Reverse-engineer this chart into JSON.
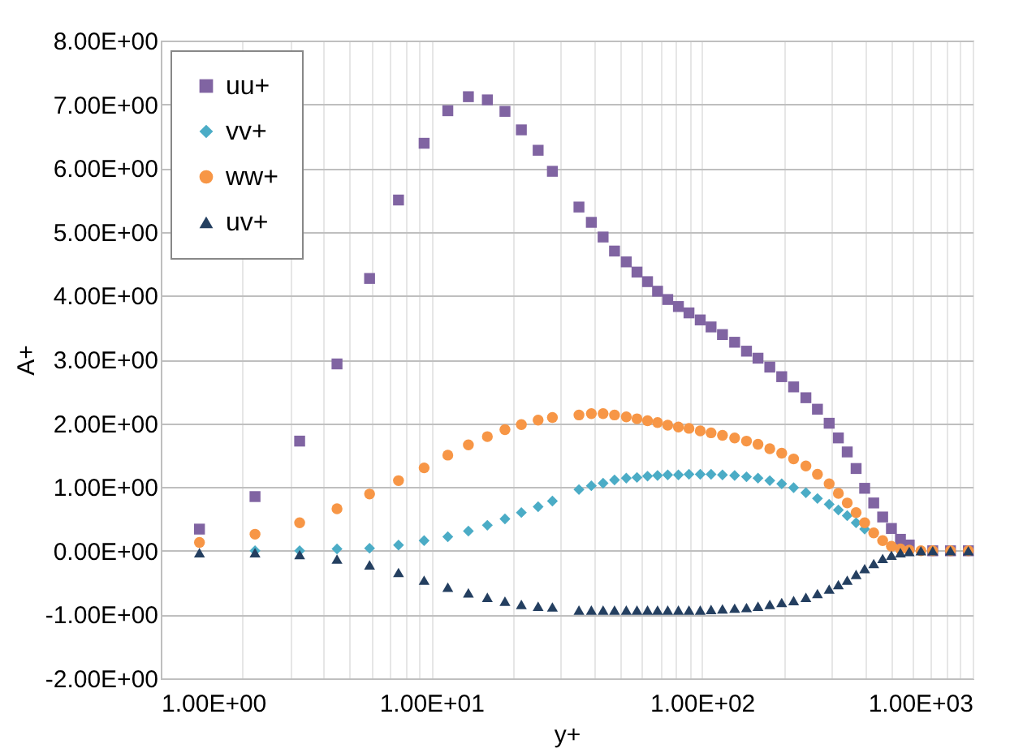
{
  "chart_data": {
    "type": "scatter",
    "xlabel": "y+",
    "ylabel": "A+",
    "log": "x",
    "grid": true,
    "legend": "top left",
    "x": [
      1.39,
      2.23,
      3.26,
      4.48,
      5.91,
      7.56,
      9.4,
      11.5,
      13.7,
      16.1,
      18.7,
      21.5,
      24.8,
      28,
      35.1,
      39.0,
      43.1,
      47.5,
      52.5,
      57.5,
      62.9,
      68.5,
      74.7,
      81.8,
      89.5,
      98.5,
      108,
      119,
      132,
      146,
      161,
      178,
      197,
      218,
      242,
      267,
      295,
      319,
      344,
      371,
      399,
      431,
      465,
      501,
      541,
      583,
      644,
      712,
      828,
      964
    ],
    "series": [
      {
        "name": "uu+",
        "color": "#8064a2",
        "marker": "square",
        "values": [
          0.34,
          0.85,
          1.72,
          2.93,
          4.27,
          5.5,
          6.39,
          6.9,
          7.12,
          7.07,
          6.89,
          6.6,
          6.28,
          5.95,
          5.39,
          5.15,
          4.92,
          4.7,
          4.53,
          4.37,
          4.22,
          4.07,
          3.94,
          3.83,
          3.73,
          3.62,
          3.51,
          3.39,
          3.27,
          3.13,
          3.02,
          2.88,
          2.73,
          2.57,
          2.4,
          2.22,
          2.0,
          1.77,
          1.55,
          1.29,
          0.98,
          0.75,
          0.53,
          0.35,
          0.18,
          0.09,
          null,
          0,
          0,
          0
        ]
      },
      {
        "name": "vv+",
        "color": "#4bacc6",
        "marker": "diamond",
        "values": [
          null,
          0,
          0,
          0.03,
          0.04,
          0.09,
          0.16,
          0.22,
          0.31,
          0.4,
          0.5,
          0.6,
          0.69,
          0.78,
          0.96,
          1.02,
          1.06,
          1.11,
          1.14,
          1.15,
          1.17,
          1.18,
          1.19,
          1.19,
          1.2,
          1.2,
          1.2,
          1.19,
          1.18,
          1.16,
          1.14,
          1.1,
          1.05,
          0.99,
          0.91,
          0.82,
          0.73,
          0.64,
          0.55,
          0.44,
          0.34,
          null,
          null,
          null,
          null,
          null,
          null,
          null,
          null,
          null
        ]
      },
      {
        "name": "ww+",
        "color": "#f79646",
        "marker": "circle",
        "values": [
          0.13,
          0.26,
          0.44,
          0.66,
          0.89,
          1.1,
          1.3,
          1.5,
          1.66,
          1.79,
          1.9,
          1.98,
          2.05,
          2.09,
          2.13,
          2.15,
          2.15,
          2.13,
          2.1,
          2.07,
          2.04,
          2.01,
          1.97,
          1.94,
          1.92,
          1.88,
          1.85,
          1.81,
          1.77,
          1.72,
          1.67,
          1.6,
          1.53,
          1.44,
          1.33,
          1.2,
          1.05,
          0.9,
          0.75,
          0.6,
          0.44,
          0.28,
          0.16,
          0.07,
          0.03,
          0.01,
          0,
          0,
          0,
          0
        ]
      },
      {
        "name": "uv+",
        "color": "#243f60",
        "marker": "triangle",
        "values": [
          -0.03,
          -0.03,
          -0.06,
          -0.13,
          -0.22,
          -0.34,
          -0.46,
          -0.57,
          -0.66,
          -0.73,
          -0.79,
          -0.84,
          -0.87,
          -0.88,
          -0.93,
          -0.93,
          -0.93,
          -0.93,
          -0.93,
          -0.93,
          -0.93,
          -0.93,
          -0.93,
          -0.93,
          -0.93,
          -0.93,
          -0.92,
          -0.91,
          -0.9,
          -0.89,
          -0.87,
          -0.84,
          -0.81,
          -0.78,
          -0.73,
          -0.67,
          -0.6,
          -0.53,
          -0.46,
          -0.37,
          -0.28,
          -0.2,
          -0.12,
          -0.07,
          -0.03,
          -0.01,
          0,
          0,
          0,
          0
        ]
      }
    ],
    "xlim": [
      1,
      1000
    ],
    "xticks": [
      {
        "value": 1,
        "label": "1.00E+00"
      },
      {
        "value": 2,
        "label": null
      },
      {
        "value": 3,
        "label": null
      },
      {
        "value": 4,
        "label": null
      },
      {
        "value": 5,
        "label": null
      },
      {
        "value": 6,
        "label": null
      },
      {
        "value": 7,
        "label": null
      },
      {
        "value": 8,
        "label": null
      },
      {
        "value": 9,
        "label": null
      },
      {
        "value": 10,
        "label": "1.00E+01"
      },
      {
        "value": 20,
        "label": null
      },
      {
        "value": 30,
        "label": null
      },
      {
        "value": 40,
        "label": null
      },
      {
        "value": 50,
        "label": null
      },
      {
        "value": 60,
        "label": null
      },
      {
        "value": 70,
        "label": null
      },
      {
        "value": 80,
        "label": null
      },
      {
        "value": 90,
        "label": null
      },
      {
        "value": 100,
        "label": "1.00E+02"
      },
      {
        "value": 200,
        "label": null
      },
      {
        "value": 300,
        "label": null
      },
      {
        "value": 400,
        "label": null
      },
      {
        "value": 500,
        "label": null
      },
      {
        "value": 600,
        "label": null
      },
      {
        "value": 700,
        "label": null
      },
      {
        "value": 800,
        "label": null
      },
      {
        "value": 900,
        "label": null
      },
      {
        "value": 1000,
        "label": "1.00E+03"
      }
    ],
    "ylim": [
      -2,
      8
    ],
    "yticks": [
      {
        "value": -2,
        "label": "-2.00E+00"
      },
      {
        "value": -1,
        "label": "-1.00E+00"
      },
      {
        "value": 0,
        "label": "0.00E+00"
      },
      {
        "value": 1,
        "label": "1.00E+00"
      },
      {
        "value": 2,
        "label": "2.00E+00"
      },
      {
        "value": 3,
        "label": "3.00E+00"
      },
      {
        "value": 4,
        "label": "4.00E+00"
      },
      {
        "value": 5,
        "label": "5.00E+00"
      },
      {
        "value": 6,
        "label": "6.00E+00"
      },
      {
        "value": 7,
        "label": "7.00E+00"
      },
      {
        "value": 8,
        "label": "8.00E+00"
      }
    ]
  }
}
